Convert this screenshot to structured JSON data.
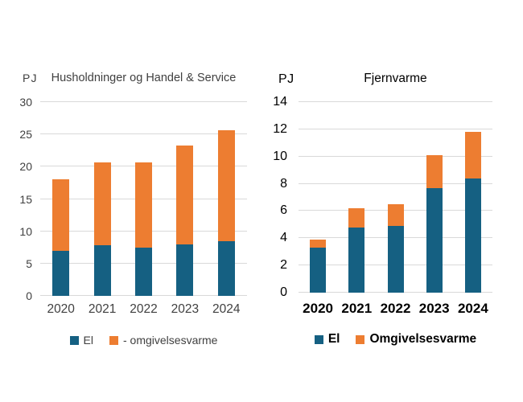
{
  "page": {
    "background_color": "#ffffff",
    "text_color_left_chart": "#404040",
    "text_color_right_chart": "#000000",
    "gridline_color": "#d9d9d9"
  },
  "chart_data": [
    {
      "type": "bar",
      "stacked": true,
      "title": "Husholdninger og Handel & Service",
      "unit_label": "PJ",
      "categories": [
        "2020",
        "2021",
        "2022",
        "2023",
        "2024"
      ],
      "series": [
        {
          "name": "El",
          "color": "#156082",
          "values": [
            7.0,
            7.8,
            7.5,
            8.0,
            8.5
          ]
        },
        {
          "name": "- omgivelsesvarme",
          "color": "#ed7d31",
          "values": [
            11.1,
            12.9,
            13.2,
            15.3,
            17.2
          ]
        }
      ],
      "stacked_totals": [
        18.1,
        20.7,
        20.7,
        23.3,
        25.7
      ],
      "ylim": [
        0,
        30
      ],
      "ytick_step": 5,
      "grid": true,
      "legend_position": "bottom"
    },
    {
      "type": "bar",
      "stacked": true,
      "title": "Fjernvarme",
      "unit_label": "PJ",
      "categories": [
        "2020",
        "2021",
        "2022",
        "2023",
        "2024"
      ],
      "series": [
        {
          "name": "El",
          "color": "#156082",
          "values": [
            3.3,
            4.8,
            4.9,
            7.7,
            8.4
          ]
        },
        {
          "name": "Omgivelsesvarme",
          "color": "#ed7d31",
          "values": [
            0.6,
            1.4,
            1.6,
            2.4,
            3.4
          ]
        }
      ],
      "stacked_totals": [
        3.9,
        6.2,
        6.5,
        10.1,
        11.8
      ],
      "ylim": [
        0,
        14
      ],
      "ytick_step": 2,
      "grid": true,
      "legend_position": "bottom"
    }
  ]
}
